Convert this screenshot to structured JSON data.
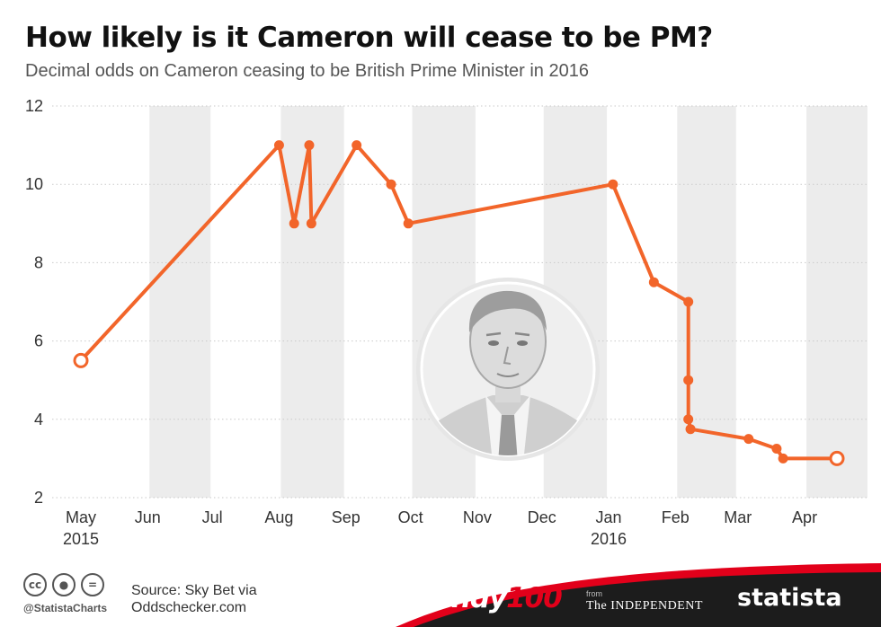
{
  "title": "How likely is it Cameron will cease to be PM?",
  "subtitle": "Decimal odds on Cameron ceasing to be British Prime Minister in 2016",
  "colors": {
    "line": "#f2652a",
    "band": "#ececec",
    "grid": "#c9c9c9",
    "footer_dark": "#1c1c1c",
    "footer_red": "#e2001a"
  },
  "chart_data": {
    "type": "line",
    "title": "How likely is it Cameron will cease to be PM?",
    "subtitle": "Decimal odds on Cameron ceasing to be British Prime Minister in 2016",
    "xlabel": "",
    "ylabel": "",
    "ylim": [
      2,
      12
    ],
    "yticks": [
      "2",
      "4",
      "6",
      "8",
      "10",
      "12"
    ],
    "grid": true,
    "x_axis_labels": [
      {
        "month": "May",
        "year": "2015"
      },
      {
        "month": "Jun",
        "year": ""
      },
      {
        "month": "Jul",
        "year": ""
      },
      {
        "month": "Aug",
        "year": ""
      },
      {
        "month": "Sep",
        "year": ""
      },
      {
        "month": "Oct",
        "year": ""
      },
      {
        "month": "Nov",
        "year": ""
      },
      {
        "month": "Dec",
        "year": ""
      },
      {
        "month": "Jan",
        "year": "2016"
      },
      {
        "month": "Feb",
        "year": ""
      },
      {
        "month": "Mar",
        "year": ""
      },
      {
        "month": "Apr",
        "year": ""
      }
    ],
    "series": [
      {
        "name": "",
        "points": [
          {
            "x": "2015-05-01",
            "y": 5.5
          },
          {
            "x": "2015-08-01",
            "y": 11
          },
          {
            "x": "2015-08-08",
            "y": 9
          },
          {
            "x": "2015-08-15",
            "y": 11
          },
          {
            "x": "2015-08-16",
            "y": 9
          },
          {
            "x": "2015-09-06",
            "y": 11
          },
          {
            "x": "2015-09-22",
            "y": 10
          },
          {
            "x": "2015-09-30",
            "y": 9
          },
          {
            "x": "2016-01-03",
            "y": 10
          },
          {
            "x": "2016-01-22",
            "y": 7.5
          },
          {
            "x": "2016-02-07",
            "y": 7
          },
          {
            "x": "2016-02-07",
            "y": 5
          },
          {
            "x": "2016-02-07",
            "y": 4
          },
          {
            "x": "2016-02-08",
            "y": 3.75
          },
          {
            "x": "2016-03-06",
            "y": 3.5
          },
          {
            "x": "2016-03-19",
            "y": 3.25
          },
          {
            "x": "2016-03-22",
            "y": 3
          },
          {
            "x": "2016-04-16",
            "y": 3
          }
        ]
      }
    ]
  },
  "footer": {
    "handle": "@StatistaCharts",
    "source_line1": "Source: Sky Bet via",
    "source_line2": "Oddschecker.com",
    "indy_part1": "indy",
    "indy_part2": "100",
    "from": "from",
    "independent": "The INDEPENDENT",
    "statista": "statista",
    "cc_icons": [
      "cc-icon",
      "attribution-icon",
      "no-derivatives-icon"
    ]
  }
}
